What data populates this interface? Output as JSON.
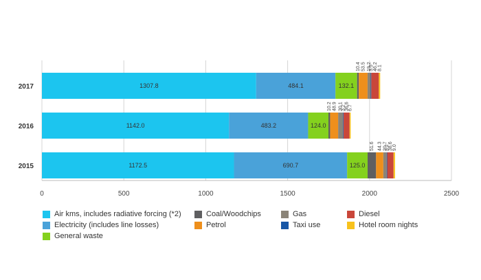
{
  "chart_data": {
    "type": "bar",
    "orientation": "horizontal",
    "stacked": true,
    "title": "",
    "xlabel": "",
    "ylabel": "",
    "categories": [
      "2017",
      "2016",
      "2015"
    ],
    "x_ticks": [
      0,
      500,
      1000,
      1500,
      2000,
      2500
    ],
    "xlim": [
      0,
      2500
    ],
    "grid": "vertical",
    "legend_position": "bottom",
    "series": [
      {
        "name": "Air kms, includes radiative forcing (*2)",
        "color": "#1cc5ef",
        "values": [
          1307.8,
          1142.0,
          1172.5
        ],
        "labels": [
          "1307.8",
          "1142.0",
          "1172.5"
        ]
      },
      {
        "name": "Electricity (includes line losses)",
        "color": "#4aa2d9",
        "values": [
          484.1,
          483.2,
          690.7
        ],
        "labels": [
          "484.1",
          "483.2",
          "690.7"
        ]
      },
      {
        "name": "General waste",
        "color": "#84d11e",
        "values": [
          132.1,
          124.0,
          125.0
        ],
        "labels": [
          "132.1",
          "124.0",
          "125.0"
        ]
      },
      {
        "name": "Coal/Woodchips",
        "color": "#5f5f61",
        "values": [
          10.4,
          10.2,
          51.6
        ],
        "labels": [
          "10.4",
          "10.2",
          "51.6"
        ]
      },
      {
        "name": "Petrol",
        "color": "#ee8f1c",
        "values": [
          53.5,
          48.9,
          44.3
        ],
        "labels": [
          "53.5",
          "48.9",
          "44.3"
        ]
      },
      {
        "name": "Gas",
        "color": "#8b8478",
        "values": [
          19.2,
          30.1,
          20.7
        ],
        "labels": [
          "19.2",
          "30.1",
          "20.7"
        ]
      },
      {
        "name": "Taxi use",
        "color": "#1756a6",
        "values": [
          3.5,
          3.2,
          3.2
        ],
        "labels": [
          "3.5",
          "3.2",
          "3.2"
        ]
      },
      {
        "name": "Diesel",
        "color": "#c9463a",
        "values": [
          46.2,
          36.6,
          38.6
        ],
        "labels": [
          "46.2",
          "36.6",
          "38.6"
        ]
      },
      {
        "name": "Hotel room nights",
        "color": "#f8c21c",
        "values": [
          8.1,
          6.7,
          9.0
        ],
        "labels": [
          "8.1",
          "6.7",
          "9.0"
        ]
      }
    ]
  },
  "legend_layout": [
    [
      "Air kms, includes radiative forcing (*2)",
      "Coal/Woodchips",
      "Gas",
      "Diesel"
    ],
    [
      "Electricity (includes line losses)",
      "Petrol",
      "Taxi use",
      "Hotel room nights"
    ],
    [
      "General waste"
    ]
  ]
}
